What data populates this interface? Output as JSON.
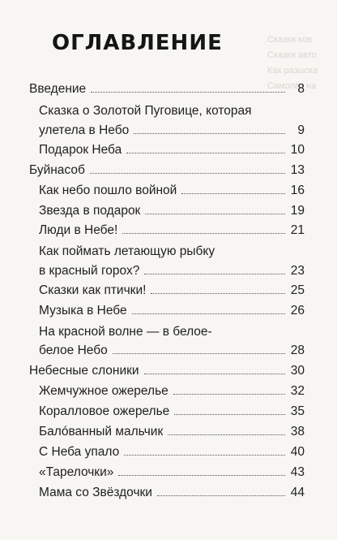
{
  "ghost_lines": [
    "Сказки ков",
    "Сказки авто",
    "Как разыска",
    "Самолёт на"
  ],
  "title": "ОГЛАВЛЕНИЕ",
  "entries": [
    {
      "text": "Введение",
      "page": "8"
    },
    {
      "text": "Сказка о Золотой Пуговице, которая",
      "cont": "улетела в Небо",
      "page": "9"
    },
    {
      "text": "Подарок Неба",
      "page": "10"
    },
    {
      "text": "Буйнасоб",
      "page": "13"
    },
    {
      "text": "Как небо пошло войной",
      "page": "16"
    },
    {
      "text": "Звезда в подарок",
      "page": "19"
    },
    {
      "text": "Люди в Небе!",
      "page": "21"
    },
    {
      "text": "Как поймать летающую рыбку",
      "cont": "в красный горох?",
      "page": "23"
    },
    {
      "text": "Сказки как птички!",
      "page": "25"
    },
    {
      "text": "Музыка в Небе",
      "page": "26"
    },
    {
      "text": "На красной волне — в белое-",
      "cont": "белое Небо",
      "page": "28"
    },
    {
      "text": "Небесные слоники",
      "page": "30"
    },
    {
      "text": "Жемчужное ожерелье",
      "page": "32"
    },
    {
      "text": "Коралловое ожерелье",
      "page": "35"
    },
    {
      "text": "Балóванный мальчик",
      "page": "38"
    },
    {
      "text": "С Неба упало",
      "page": "40"
    },
    {
      "text": "«Тарелочки»",
      "page": "43"
    },
    {
      "text": "Мама со Звёздочки",
      "page": "44"
    }
  ]
}
